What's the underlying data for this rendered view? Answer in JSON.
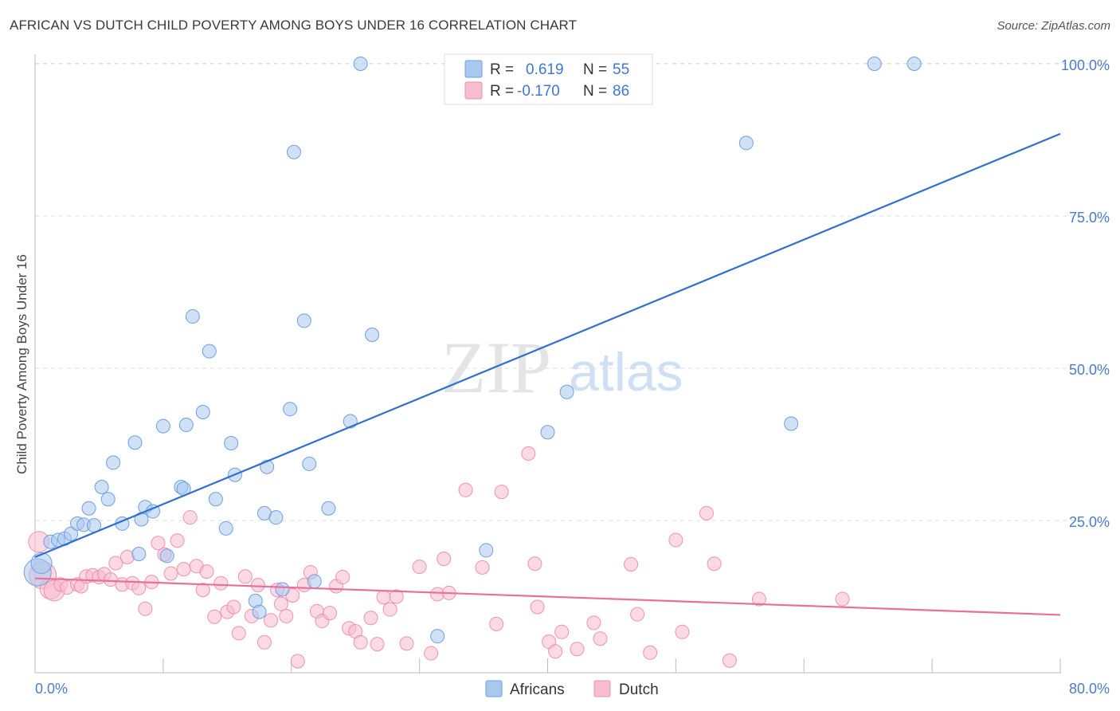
{
  "title": "AFRICAN VS DUTCH CHILD POVERTY AMONG BOYS UNDER 16 CORRELATION CHART",
  "source": "Source: ZipAtlas.com",
  "watermark": {
    "zip": "ZIP",
    "atlas": "atlas"
  },
  "colors": {
    "africans_fill": "#a9c8ef",
    "africans_stroke": "#6f9fe0",
    "africans_line": "#2f6fcf",
    "dutch_fill": "#f7bccf",
    "dutch_stroke": "#ee91ad",
    "dutch_line": "#e8709a",
    "value_text": "#3c78d8",
    "grid": "#dddddd"
  },
  "stats": {
    "africans": {
      "r_label": "R =",
      "r_value": "0.619",
      "n_label": "N =",
      "n_value": "55"
    },
    "dutch": {
      "r_label": "R =",
      "r_value": "-0.170",
      "n_label": "N =",
      "n_value": "86"
    }
  },
  "chart_data": {
    "type": "scatter",
    "ylabel": "Child Poverty Among Boys Under 16",
    "xlabel": "",
    "xlim": [
      0,
      80
    ],
    "ylim": [
      0,
      105
    ],
    "x_tick_labels": [
      "0.0%",
      "80.0%"
    ],
    "y_ticks": [
      25,
      50,
      75,
      100
    ],
    "y_tick_labels": [
      "25.0%",
      "50.0%",
      "75.0%",
      "100.0%"
    ],
    "grid": "horizontal dashed",
    "legend": [
      "Africans",
      "Dutch"
    ],
    "series": [
      {
        "name": "Africans",
        "trend": {
          "x": [
            0,
            80
          ],
          "y": [
            19.0,
            88.5
          ]
        },
        "points": [
          [
            0.2,
            16.5,
            "lg"
          ],
          [
            0.5,
            18.0,
            "md"
          ],
          [
            1.2,
            21.5
          ],
          [
            1.8,
            21.8
          ],
          [
            2.3,
            22.0
          ],
          [
            2.8,
            22.8
          ],
          [
            3.3,
            24.5
          ],
          [
            3.8,
            24.3
          ],
          [
            4.2,
            27.0
          ],
          [
            4.6,
            24.2
          ],
          [
            5.2,
            30.5
          ],
          [
            5.7,
            28.5
          ],
          [
            6.8,
            24.5
          ],
          [
            6.1,
            34.5
          ],
          [
            7.8,
            37.8
          ],
          [
            8.3,
            25.2
          ],
          [
            8.6,
            27.2
          ],
          [
            9.2,
            26.5
          ],
          [
            8.1,
            19.5
          ],
          [
            10.3,
            19.2
          ],
          [
            10.0,
            40.5
          ],
          [
            11.4,
            30.5
          ],
          [
            11.6,
            30.2
          ],
          [
            11.8,
            40.7
          ],
          [
            12.3,
            58.5
          ],
          [
            13.1,
            42.8
          ],
          [
            13.6,
            52.8
          ],
          [
            14.1,
            28.5
          ],
          [
            14.9,
            23.7
          ],
          [
            15.3,
            37.7
          ],
          [
            15.6,
            32.5
          ],
          [
            17.2,
            11.8
          ],
          [
            17.5,
            10.0
          ],
          [
            17.9,
            26.2
          ],
          [
            18.1,
            33.8
          ],
          [
            18.8,
            25.5
          ],
          [
            19.3,
            13.7
          ],
          [
            19.9,
            43.3
          ],
          [
            20.2,
            85.5
          ],
          [
            21.0,
            57.8
          ],
          [
            21.4,
            34.3
          ],
          [
            21.8,
            15.0
          ],
          [
            22.9,
            27.0
          ],
          [
            24.6,
            41.3
          ],
          [
            25.4,
            100
          ],
          [
            26.3,
            55.5
          ],
          [
            31.4,
            6.0
          ],
          [
            35.2,
            20.1
          ],
          [
            40.0,
            39.5
          ],
          [
            41.5,
            46.1
          ],
          [
            55.5,
            87.0
          ],
          [
            59.0,
            40.9
          ],
          [
            65.5,
            100
          ],
          [
            68.6,
            100
          ]
        ]
      },
      {
        "name": "Dutch",
        "trend": {
          "x": [
            0,
            80
          ],
          "y": [
            15.5,
            9.5
          ]
        },
        "points": [
          [
            0.3,
            21.5,
            "md"
          ],
          [
            0.6,
            16.0,
            "lg"
          ],
          [
            1.2,
            13.8,
            "md"
          ],
          [
            1.5,
            13.5,
            "md"
          ],
          [
            2.0,
            14.5
          ],
          [
            2.5,
            14.0
          ],
          [
            3.3,
            14.5
          ],
          [
            3.6,
            14.2
          ],
          [
            4.0,
            15.8
          ],
          [
            4.5,
            16.0
          ],
          [
            5.0,
            15.7
          ],
          [
            5.4,
            16.2
          ],
          [
            5.9,
            15.3
          ],
          [
            6.3,
            18.0
          ],
          [
            6.8,
            14.5
          ],
          [
            7.2,
            19.0
          ],
          [
            7.6,
            14.7
          ],
          [
            8.1,
            13.9
          ],
          [
            8.6,
            10.5
          ],
          [
            9.1,
            14.9
          ],
          [
            9.6,
            21.3
          ],
          [
            10.1,
            19.4
          ],
          [
            10.6,
            16.3
          ],
          [
            11.1,
            21.7
          ],
          [
            11.6,
            17.0
          ],
          [
            12.1,
            25.5
          ],
          [
            12.6,
            17.5
          ],
          [
            13.1,
            13.6
          ],
          [
            13.4,
            16.6
          ],
          [
            14.0,
            9.2
          ],
          [
            14.5,
            14.7
          ],
          [
            15.0,
            10.0
          ],
          [
            15.5,
            10.8
          ],
          [
            15.9,
            6.5
          ],
          [
            16.4,
            15.8
          ],
          [
            16.9,
            9.3
          ],
          [
            17.4,
            14.4
          ],
          [
            17.9,
            5.0
          ],
          [
            18.4,
            8.6
          ],
          [
            18.9,
            13.6
          ],
          [
            19.2,
            11.3
          ],
          [
            19.6,
            9.3
          ],
          [
            20.1,
            12.7
          ],
          [
            20.5,
            1.9
          ],
          [
            21.0,
            14.4
          ],
          [
            21.5,
            16.5
          ],
          [
            22.0,
            10.1
          ],
          [
            22.4,
            8.5
          ],
          [
            23.0,
            9.8
          ],
          [
            23.5,
            14.2
          ],
          [
            24.0,
            15.7
          ],
          [
            24.5,
            7.3
          ],
          [
            25.0,
            6.8
          ],
          [
            25.4,
            5.0
          ],
          [
            26.2,
            9.0
          ],
          [
            26.7,
            4.7
          ],
          [
            27.2,
            12.4
          ],
          [
            27.7,
            10.4
          ],
          [
            28.2,
            12.5
          ],
          [
            29.0,
            4.8
          ],
          [
            30.0,
            17.4
          ],
          [
            30.9,
            3.2
          ],
          [
            31.4,
            12.9
          ],
          [
            31.9,
            18.7
          ],
          [
            32.3,
            13.1
          ],
          [
            33.6,
            30.0
          ],
          [
            34.9,
            17.3
          ],
          [
            36.0,
            8.0
          ],
          [
            36.4,
            29.7
          ],
          [
            38.5,
            36.0
          ],
          [
            39.0,
            17.9
          ],
          [
            39.2,
            10.8
          ],
          [
            40.1,
            5.1
          ],
          [
            40.6,
            3.5
          ],
          [
            41.1,
            6.7
          ],
          [
            42.3,
            3.9
          ],
          [
            43.6,
            8.2
          ],
          [
            44.1,
            5.6
          ],
          [
            46.5,
            17.8
          ],
          [
            47.0,
            9.6
          ],
          [
            48.0,
            3.3
          ],
          [
            50.0,
            21.8
          ],
          [
            50.5,
            6.7
          ],
          [
            52.4,
            26.2
          ],
          [
            53.0,
            17.9
          ],
          [
            54.2,
            2.0
          ],
          [
            56.5,
            12.1
          ],
          [
            63.0,
            12.1
          ]
        ]
      }
    ]
  }
}
